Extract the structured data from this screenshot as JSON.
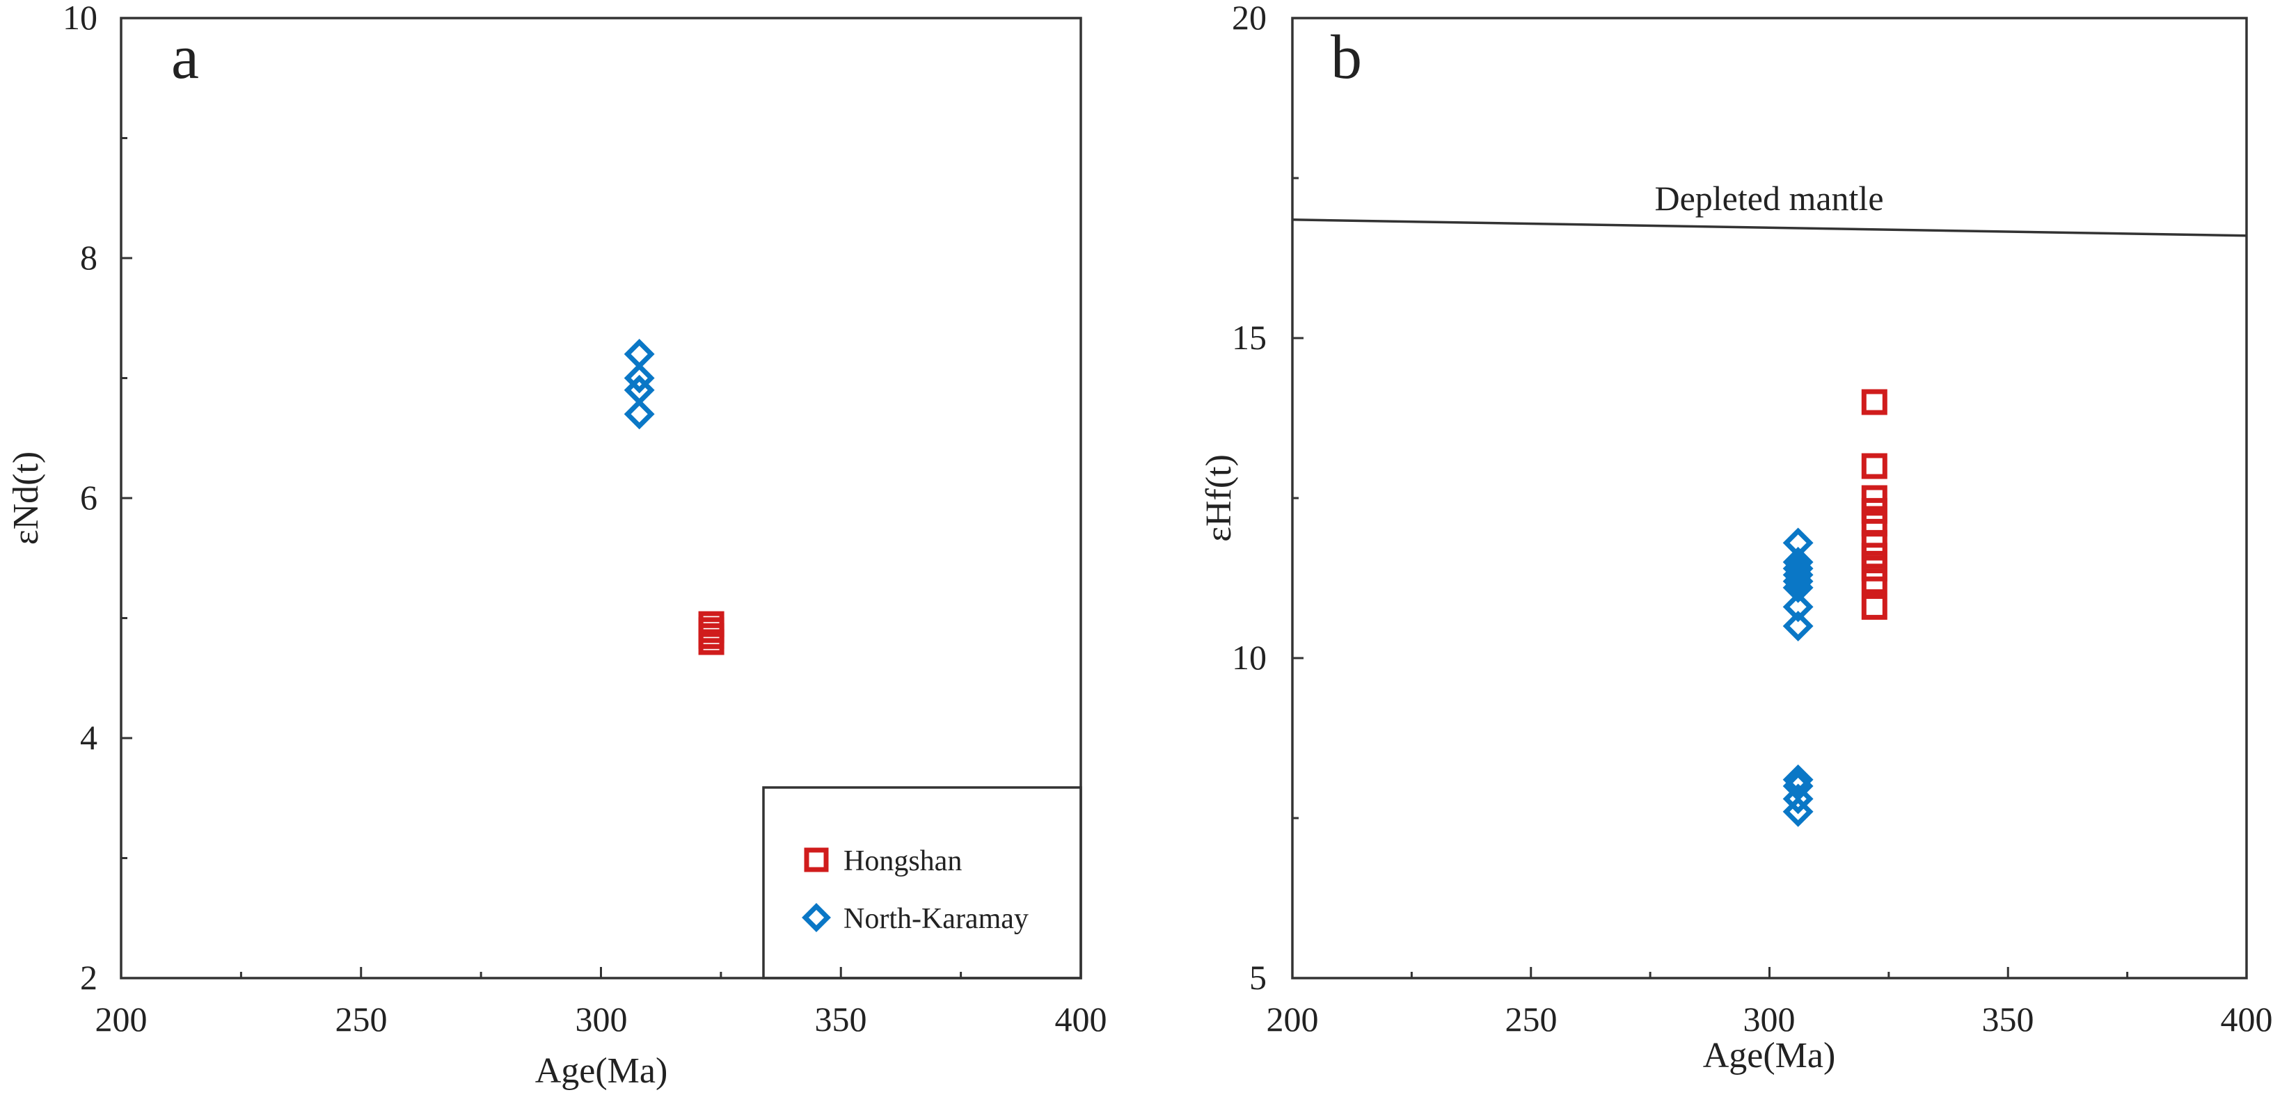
{
  "colors": {
    "hongshan": "#d01c1c",
    "north_karamay": "#0a77c6",
    "axis": "#333333"
  },
  "chart_data": [
    {
      "type": "scatter",
      "panel_label": "a",
      "xlabel": "Age(Ma)",
      "ylabel": "εNd(t)",
      "xlim": [
        200,
        400
      ],
      "ylim": [
        2,
        10
      ],
      "xticks": [
        200,
        250,
        300,
        350,
        400
      ],
      "yticks": [
        2,
        4,
        6,
        8,
        10
      ],
      "x_tick_labels": [
        "200",
        "250",
        "300",
        "350",
        "400"
      ],
      "y_tick_labels": [
        "2",
        "4",
        "6",
        "8",
        "10"
      ],
      "legend": {
        "position": "bottom-right",
        "entries": [
          {
            "label": "Hongshan",
            "marker": "square",
            "color": "#d01c1c"
          },
          {
            "label": "North-Karamay",
            "marker": "diamond",
            "color": "#0a77c6"
          }
        ]
      },
      "series": [
        {
          "name": "Hongshan",
          "marker": "square",
          "color": "#d01c1c",
          "points": [
            [
              323,
              4.95
            ],
            [
              323,
              4.9
            ],
            [
              323,
              4.85
            ],
            [
              323,
              4.8
            ]
          ]
        },
        {
          "name": "North-Karamay",
          "marker": "diamond",
          "color": "#0a77c6",
          "points": [
            [
              308,
              7.2
            ],
            [
              308,
              7.0
            ],
            [
              308,
              6.9
            ],
            [
              308,
              6.7
            ]
          ]
        }
      ]
    },
    {
      "type": "scatter",
      "panel_label": "b",
      "xlabel": "Age(Ma)",
      "ylabel": "εHf(t)",
      "xlim": [
        200,
        400
      ],
      "ylim": [
        5,
        20
      ],
      "xticks": [
        200,
        250,
        300,
        350,
        400
      ],
      "yticks": [
        5,
        10,
        15,
        20
      ],
      "x_tick_labels": [
        "200",
        "250",
        "300",
        "350",
        "400"
      ],
      "y_tick_labels": [
        "5",
        "10",
        "15",
        "20"
      ],
      "reference_line": {
        "label": "Depleted mantle",
        "points": [
          [
            200,
            16.85
          ],
          [
            400,
            16.6
          ]
        ]
      },
      "series": [
        {
          "name": "Hongshan",
          "marker": "square",
          "color": "#d01c1c",
          "points": [
            [
              322,
              14.0
            ],
            [
              322,
              13.0
            ],
            [
              322,
              12.5
            ],
            [
              322,
              12.3
            ],
            [
              322,
              12.1
            ],
            [
              322,
              11.8
            ],
            [
              322,
              11.6
            ],
            [
              322,
              11.4
            ],
            [
              322,
              11.2
            ],
            [
              322,
              10.8
            ]
          ]
        },
        {
          "name": "North-Karamay",
          "marker": "diamond",
          "color": "#0a77c6",
          "points": [
            [
              306,
              11.8
            ],
            [
              306,
              11.5
            ],
            [
              306,
              11.4
            ],
            [
              306,
              11.3
            ],
            [
              306,
              11.2
            ],
            [
              306,
              11.1
            ],
            [
              306,
              10.8
            ],
            [
              306,
              10.5
            ],
            [
              306,
              8.1
            ],
            [
              306,
              8.0
            ],
            [
              306,
              7.8
            ],
            [
              306,
              7.6
            ]
          ]
        }
      ]
    }
  ]
}
